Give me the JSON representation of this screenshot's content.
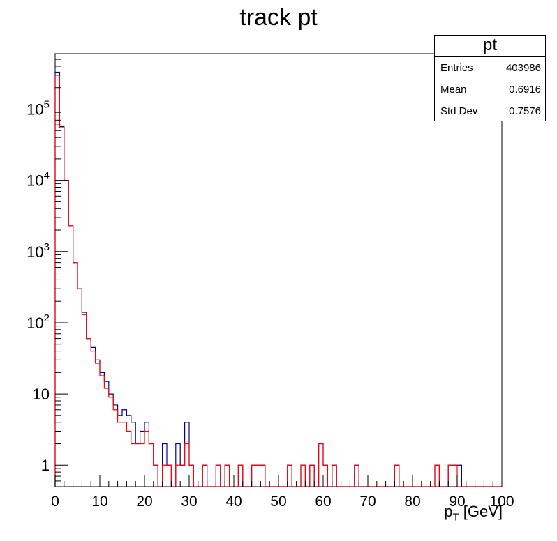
{
  "chart_data": {
    "type": "bar",
    "title": "track pt",
    "xlabel_main": "p",
    "xlabel_sub": "T",
    "xlabel_unit": " [GeV]",
    "ylabel": "",
    "xlim": [
      0,
      100
    ],
    "ylim": [
      0.5,
      600000
    ],
    "yscale": "log",
    "x_ticks": [
      "0",
      "10",
      "20",
      "30",
      "40",
      "50",
      "60",
      "70",
      "80",
      "90",
      "100"
    ],
    "y_ticks": [
      {
        "base": "1",
        "exp": ""
      },
      {
        "base": "10",
        "exp": ""
      },
      {
        "base": "10",
        "exp": "2"
      },
      {
        "base": "10",
        "exp": "3"
      },
      {
        "base": "10",
        "exp": "4"
      },
      {
        "base": "10",
        "exp": "5"
      }
    ],
    "bin_width": 1,
    "series": [
      {
        "color": "#000099",
        "values": [
          330000,
          57000,
          10000,
          2300,
          700,
          300,
          140,
          60,
          45,
          30,
          20,
          15,
          10,
          7,
          5,
          6,
          5,
          4,
          2,
          3,
          4,
          2,
          1,
          0,
          2,
          1,
          0,
          2,
          1,
          4,
          1,
          0,
          0,
          1,
          0,
          0,
          1,
          0,
          1,
          0,
          0,
          1,
          0,
          0,
          1,
          1,
          1,
          0,
          0,
          0,
          0,
          0,
          1,
          0,
          0,
          1,
          0,
          1,
          0,
          2,
          1,
          0,
          1,
          0,
          0,
          0,
          0,
          1,
          0,
          0,
          0,
          0,
          0,
          0,
          0,
          0,
          1,
          0,
          0,
          0,
          0,
          0,
          0,
          0,
          0,
          1,
          0,
          0,
          1,
          1,
          1,
          0,
          0,
          0,
          0,
          0,
          0,
          0,
          0,
          0
        ]
      },
      {
        "color": "#ff0000",
        "values": [
          300000,
          55000,
          10000,
          2300,
          700,
          300,
          130,
          60,
          40,
          27,
          18,
          12,
          9,
          6,
          4,
          4,
          3,
          2,
          2,
          2,
          3,
          2,
          1,
          0,
          1,
          1,
          0,
          1,
          1,
          2,
          1,
          0,
          0,
          1,
          0,
          0,
          1,
          0,
          1,
          0,
          0,
          1,
          0,
          0,
          1,
          1,
          1,
          0,
          0,
          0,
          0,
          0,
          1,
          0,
          0,
          1,
          0,
          1,
          0,
          2,
          1,
          0,
          1,
          0,
          0,
          0,
          0,
          1,
          0,
          0,
          0,
          0,
          0,
          0,
          0,
          0,
          1,
          0,
          0,
          0,
          0,
          0,
          0,
          0,
          0,
          1,
          0,
          0,
          1,
          1,
          0,
          0,
          0,
          0,
          0,
          0,
          0,
          0,
          0,
          0
        ]
      }
    ],
    "stats": {
      "name": "pt",
      "rows": [
        {
          "label": "Entries",
          "value": "403986"
        },
        {
          "label": "Mean",
          "value": "0.6916"
        },
        {
          "label": "Std Dev",
          "value": "0.7576"
        }
      ]
    }
  }
}
